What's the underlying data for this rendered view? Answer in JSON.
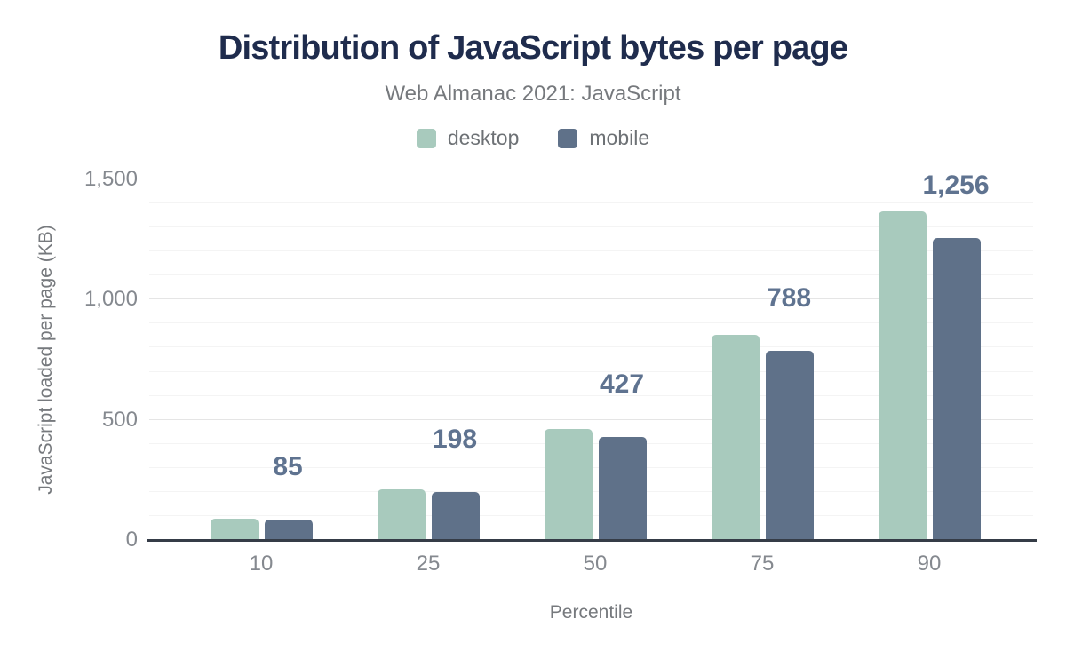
{
  "chart_data": {
    "type": "bar",
    "title": "Distribution of JavaScript bytes per page",
    "subtitle": "Web Almanac 2021: JavaScript",
    "xlabel": "Percentile",
    "ylabel": "JavaScript loaded per page (KB)",
    "categories": [
      "10",
      "25",
      "50",
      "75",
      "90"
    ],
    "series": [
      {
        "name": "desktop",
        "color": "#a8cabd",
        "values": [
          87,
          209,
          463,
          855,
          1367
        ]
      },
      {
        "name": "mobile",
        "color": "#5f7189",
        "values": [
          85,
          198,
          427,
          788,
          1256
        ]
      }
    ],
    "data_labels": {
      "series": "mobile",
      "values": [
        "85",
        "198",
        "427",
        "788",
        "1,256"
      ]
    },
    "ylim": [
      0,
      1500
    ],
    "yticks": [
      {
        "value": 0,
        "label": "0"
      },
      {
        "value": 500,
        "label": "500"
      },
      {
        "value": 1000,
        "label": "1,000"
      },
      {
        "value": 1500,
        "label": "1,500"
      }
    ],
    "grid": {
      "minor_step": 100,
      "major_step": 500,
      "visible": true
    },
    "legend_position": "top"
  },
  "colors": {
    "background": "#ffffff",
    "title_text": "#1f2c4d",
    "subtitle_text": "#76797d",
    "tick_text": "#85898f",
    "data_label_text": "#5f7390",
    "axis_line": "#353c47",
    "gridline_minor": "#f4f4f4",
    "gridline_major": "#e5e5e5",
    "desktop_series": "#a8cabd",
    "mobile_series": "#5f7189"
  }
}
